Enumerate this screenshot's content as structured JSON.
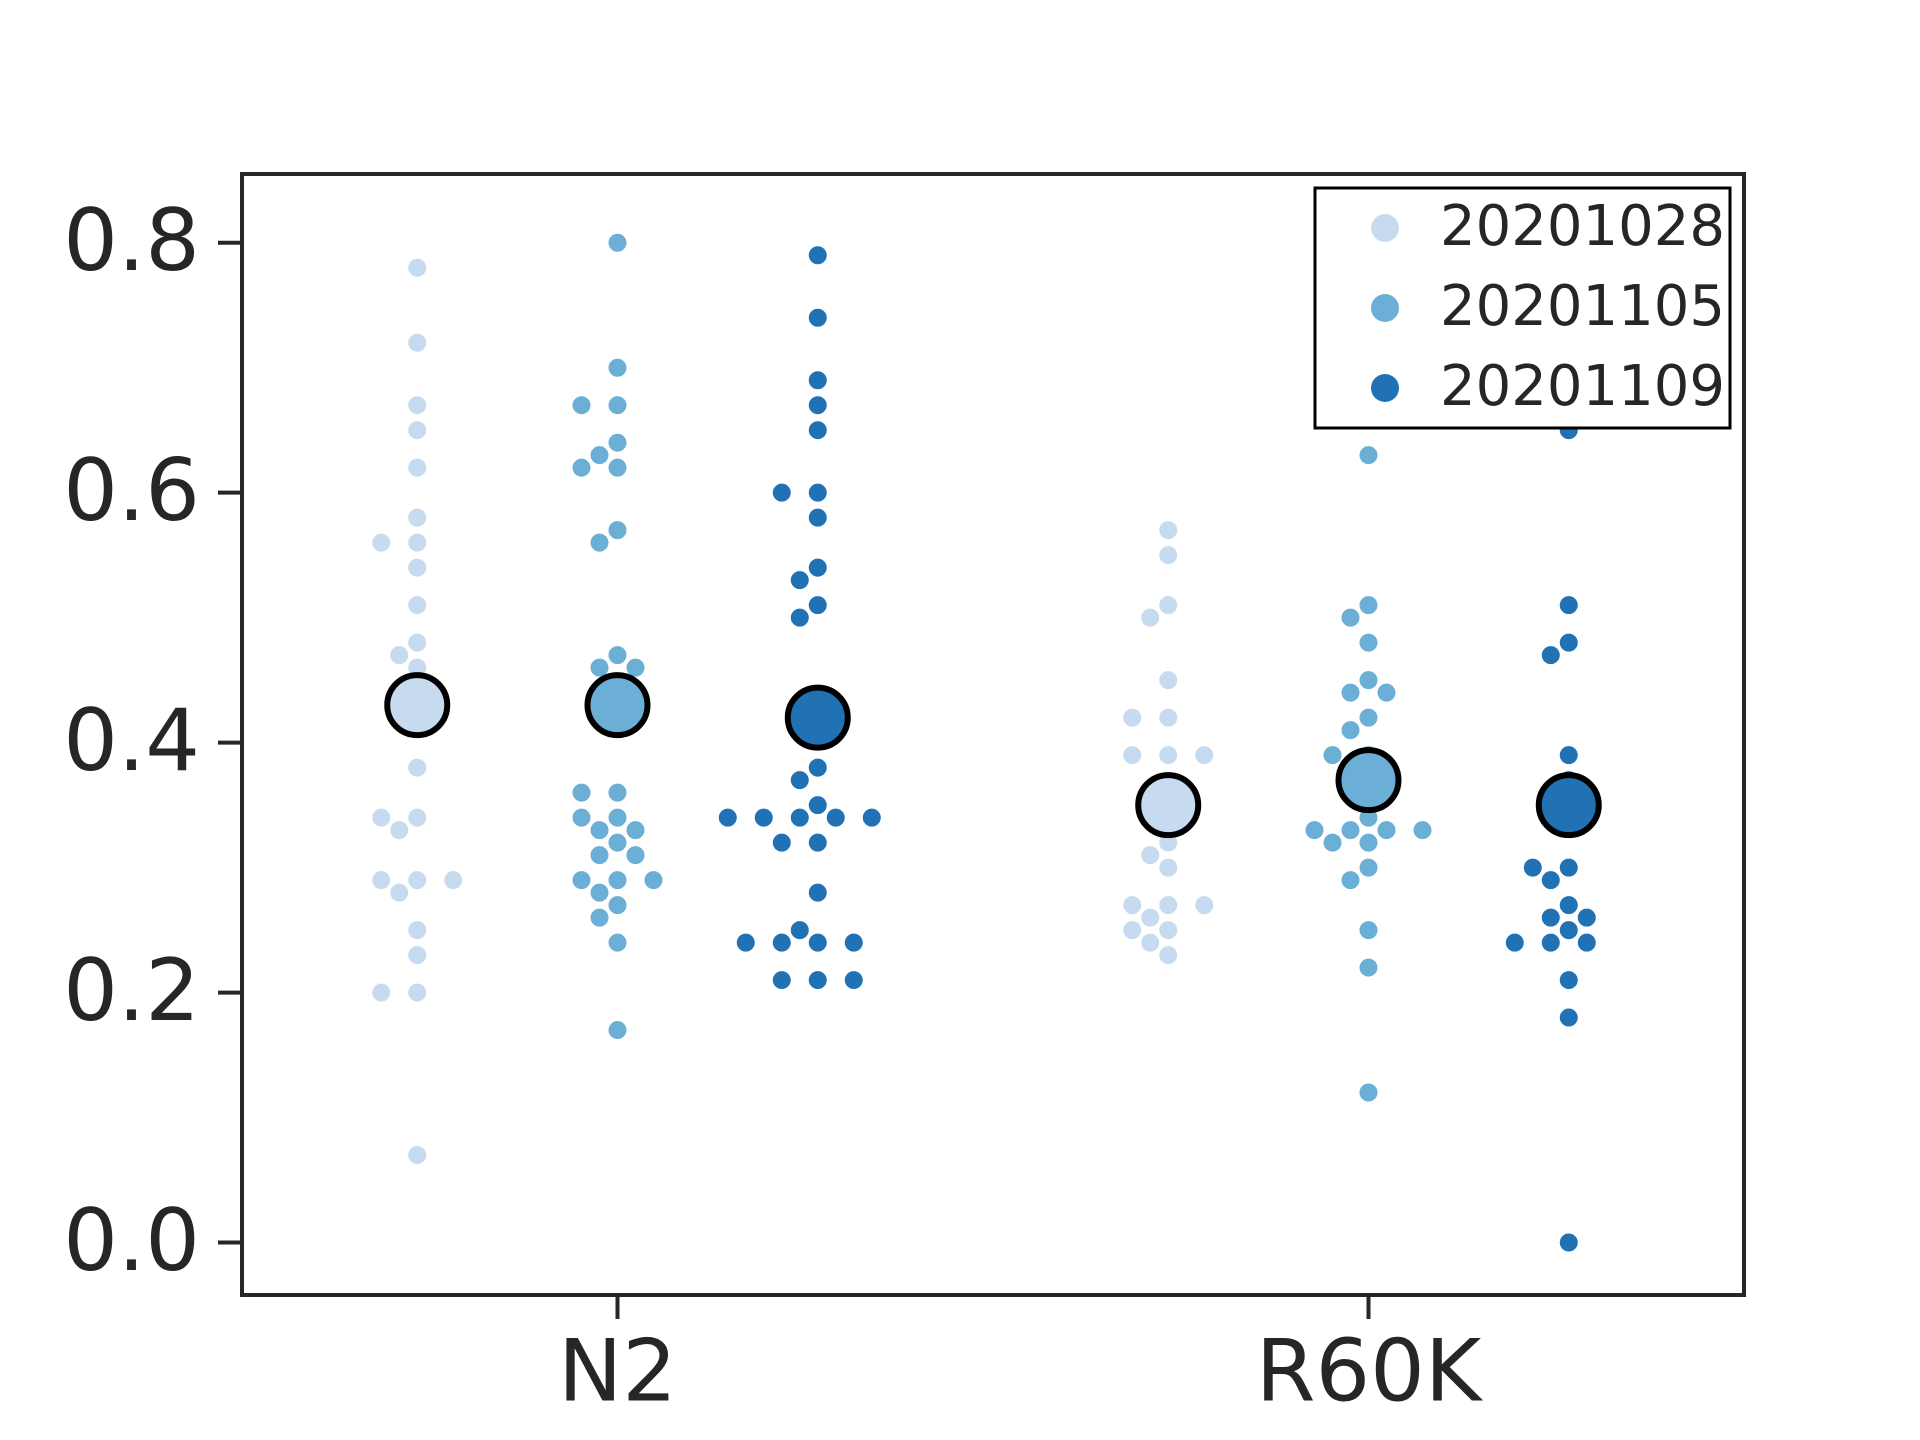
{
  "chart_data": {
    "type": "swarm",
    "categories": [
      "N2",
      "R60K"
    ],
    "xlim": [
      -0.5,
      1.5
    ],
    "ylim": [
      -0.042,
      0.855
    ],
    "yticks": [
      {
        "value": 0,
        "label": "0.0"
      },
      0.2,
      0.4,
      0.6,
      0.8
    ],
    "legend": "upper right",
    "series": [
      {
        "name": "20201028",
        "color": "#c6dbef",
        "values": [
          [
            0.78,
            0.72,
            0.67,
            0.65,
            0.62,
            0.58,
            0.56,
            0.56,
            0.54,
            0.51,
            0.48,
            0.47,
            0.46,
            0.38,
            0.34,
            0.34,
            0.33,
            0.29,
            0.29,
            0.29,
            0.28,
            0.25,
            0.23,
            0.2,
            0.2,
            0.07
          ],
          [
            0.57,
            0.55,
            0.51,
            0.5,
            0.45,
            0.42,
            0.42,
            0.39,
            0.39,
            0.39,
            0.36,
            0.35,
            0.32,
            0.31,
            0.3,
            0.27,
            0.27,
            0.27,
            0.26,
            0.25,
            0.25,
            0.24,
            0.23
          ]
        ],
        "means": [
          0.43,
          0.35
        ]
      },
      {
        "name": "20201105",
        "color": "#6baed6",
        "values": [
          [
            0.8,
            0.7,
            0.67,
            0.67,
            0.64,
            0.63,
            0.62,
            0.62,
            0.57,
            0.56,
            0.47,
            0.46,
            0.46,
            0.36,
            0.36,
            0.34,
            0.34,
            0.33,
            0.33,
            0.32,
            0.31,
            0.31,
            0.29,
            0.29,
            0.29,
            0.28,
            0.27,
            0.26,
            0.24,
            0.17
          ],
          [
            0.63,
            0.51,
            0.5,
            0.48,
            0.45,
            0.44,
            0.44,
            0.42,
            0.41,
            0.39,
            0.39,
            0.37,
            0.36,
            0.34,
            0.33,
            0.33,
            0.33,
            0.33,
            0.32,
            0.32,
            0.3,
            0.29,
            0.25,
            0.22,
            0.12
          ]
        ],
        "means": [
          0.43,
          0.37
        ]
      },
      {
        "name": "20201109",
        "color": "#2171b5",
        "values": [
          [
            0.79,
            0.74,
            0.69,
            0.67,
            0.65,
            0.6,
            0.6,
            0.58,
            0.54,
            0.53,
            0.51,
            0.5,
            0.38,
            0.37,
            0.35,
            0.34,
            0.34,
            0.34,
            0.34,
            0.34,
            0.32,
            0.32,
            0.28,
            0.24,
            0.24,
            0.24,
            0.24,
            0.25,
            0.21,
            0.21,
            0.21
          ],
          [
            0.65,
            0.51,
            0.48,
            0.47,
            0.39,
            0.37,
            0.35,
            0.3,
            0.3,
            0.29,
            0.27,
            0.26,
            0.26,
            0.25,
            0.24,
            0.24,
            0.24,
            0.21,
            0.18,
            0
          ]
        ],
        "means": [
          0.42,
          0.35
        ]
      }
    ]
  }
}
